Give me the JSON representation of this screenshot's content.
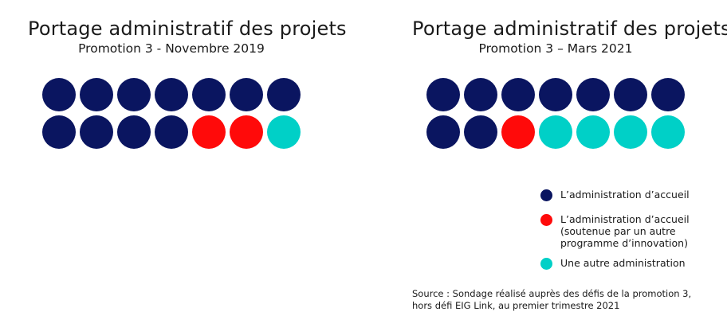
{
  "colors": {
    "accueil": "#0a1560",
    "accueil_soutenue": "#ff0a0a",
    "autre": "#00d0c7"
  },
  "chart_data": [
    {
      "type": "waffle",
      "title": "Portage administratif des projets",
      "subtitle": "Promotion 3 - Novembre 2019",
      "rows": 2,
      "cols": 7,
      "series": [
        {
          "name": "L’administration d’accueil",
          "key": "accueil",
          "value": 11
        },
        {
          "name": "L’administration d’accueil (soutenue par un autre programme d’innovation)",
          "key": "accueil_soutenue",
          "value": 2
        },
        {
          "name": "Une autre administration",
          "key": "autre",
          "value": 1
        }
      ]
    },
    {
      "type": "waffle",
      "title": "Portage administratif des projets",
      "subtitle": "Promotion 3 – Mars 2021",
      "rows": 2,
      "cols": 7,
      "series": [
        {
          "name": "L’administration d’accueil",
          "key": "accueil",
          "value": 9
        },
        {
          "name": "L’administration d’accueil (soutenue par un autre programme d’innovation)",
          "key": "accueil_soutenue",
          "value": 1
        },
        {
          "name": "Une autre administration",
          "key": "autre",
          "value": 4
        }
      ]
    }
  ],
  "legend": [
    {
      "key": "accueil",
      "label": "L’administration d’accueil"
    },
    {
      "key": "accueil_soutenue",
      "label": "L’administration d’accueil\n(soutenue par un autre\nprogramme d’innovation)"
    },
    {
      "key": "autre",
      "label": "Une autre administration"
    }
  ],
  "source": "Source : Sondage réalisé auprès des défis de la promotion 3,\nhors défi EIG Link, au premier trimestre 2021"
}
